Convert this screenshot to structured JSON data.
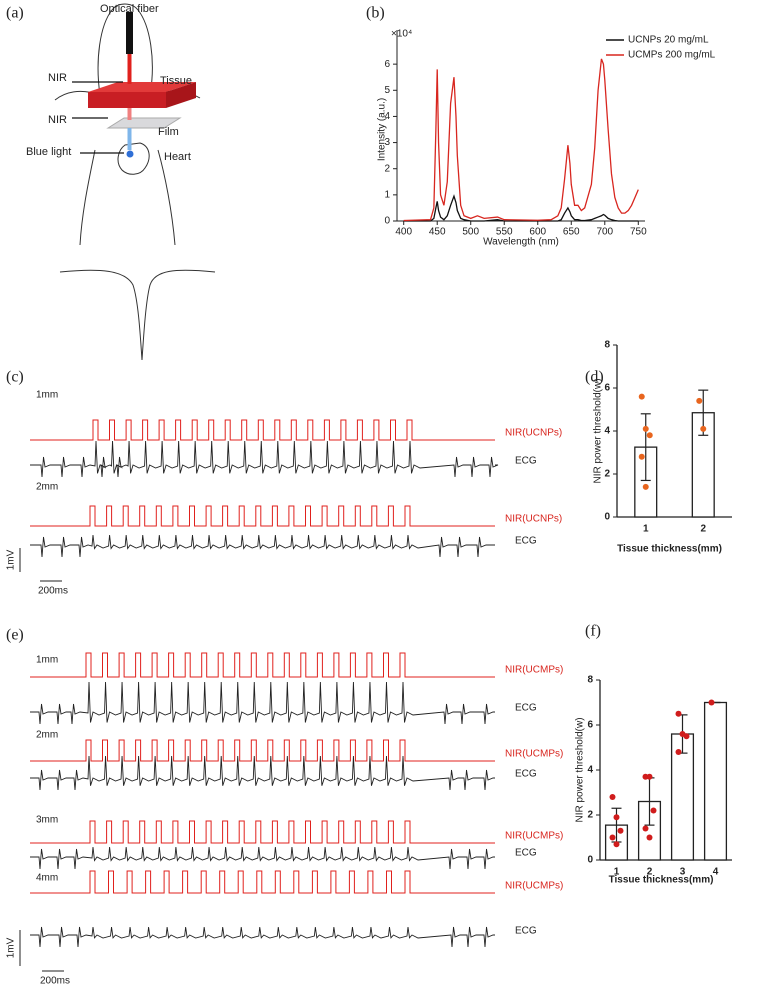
{
  "figure": {
    "panels": [
      "(a)",
      "(b)",
      "(c)",
      "(d)",
      "(e)",
      "(f)"
    ],
    "a": {
      "labels": [
        "Optical fiber",
        "NIR",
        "Tissue",
        "NIR",
        "Film",
        "Blue light",
        "Heart"
      ]
    },
    "c": {
      "rows": [
        {
          "thickness": "1mm",
          "stimulus": "NIR(UCNPs)",
          "recording": "ECG"
        },
        {
          "thickness": "2mm",
          "stimulus": "NIR(UCNPs)",
          "recording": "ECG"
        }
      ],
      "scale_voltage": "1mV",
      "scale_time": "200ms"
    },
    "e": {
      "rows": [
        {
          "thickness": "1mm",
          "stimulus": "NIR(UCMPs)",
          "recording": "ECG"
        },
        {
          "thickness": "2mm",
          "stimulus": "NIR(UCMPs)",
          "recording": "ECG"
        },
        {
          "thickness": "3mm",
          "stimulus": "NIR(UCMPs)",
          "recording": "ECG"
        },
        {
          "thickness": "4mm",
          "stimulus": "NIR(UCMPs)",
          "recording": "ECG"
        }
      ],
      "scale_voltage": "1mV",
      "scale_time": "200ms"
    }
  },
  "chart_data": [
    {
      "type": "line",
      "x_label": "Wavelength (nm)",
      "y_label": "Intensity (a.u.)",
      "y_scale_label": "×10⁴",
      "x": [
        400,
        440,
        445,
        448,
        450,
        452,
        455,
        460,
        465,
        470,
        475,
        478,
        480,
        485,
        490,
        500,
        510,
        520,
        540,
        550,
        600,
        620,
        630,
        635,
        640,
        645,
        648,
        650,
        655,
        660,
        665,
        670,
        680,
        685,
        690,
        695,
        698,
        700,
        705,
        710,
        715,
        720,
        725,
        730,
        735,
        740,
        745,
        750
      ],
      "series": [
        {
          "name": "UCNPs 20 mg/mL",
          "color": "#111111",
          "values": [
            0,
            0,
            0.1,
            0.5,
            0.75,
            0.4,
            0.15,
            0.05,
            0.2,
            0.6,
            0.95,
            0.7,
            0.4,
            0.1,
            0.05,
            0,
            0,
            0,
            0.05,
            0,
            0,
            0,
            0,
            0.05,
            0.3,
            0.5,
            0.35,
            0.2,
            0.05,
            0.05,
            0.02,
            0.02,
            0.05,
            0.1,
            0.15,
            0.2,
            0.25,
            0.22,
            0.1,
            0.05,
            0.02,
            0,
            0,
            0,
            0,
            0,
            0,
            0
          ]
        },
        {
          "name": "UCMPs 200 mg/mL",
          "color": "#d8261f",
          "values": [
            0.02,
            0.05,
            0.5,
            3.5,
            5.8,
            3.0,
            1.0,
            0.6,
            1.5,
            4.5,
            5.5,
            4.0,
            2.5,
            0.6,
            0.2,
            0.1,
            0.2,
            0.1,
            0.15,
            0.05,
            0.03,
            0.05,
            0.2,
            0.5,
            1.6,
            2.9,
            2.2,
            1.4,
            0.6,
            0.6,
            0.4,
            0.5,
            1.4,
            2.8,
            5.0,
            6.2,
            6.0,
            5.4,
            3.5,
            1.8,
            0.9,
            0.5,
            0.3,
            0.3,
            0.4,
            0.6,
            0.9,
            1.2
          ]
        }
      ],
      "xlim": [
        390,
        760
      ],
      "xticks": [
        400,
        450,
        500,
        550,
        600,
        650,
        700,
        750
      ],
      "ylim": [
        0,
        7
      ],
      "yticks": [
        0,
        1,
        2,
        3,
        4,
        5,
        6
      ],
      "legend": "upper right"
    },
    {
      "type": "bar",
      "x_label": "Tissue thickness(mm)",
      "y_label": "NIR power threshold(w)",
      "categories": [
        "1",
        "2"
      ],
      "values": [
        3.25,
        4.85
      ],
      "errors": [
        1.55,
        1.05
      ],
      "points": [
        [
          5.6,
          4.1,
          3.8,
          2.8,
          1.4
        ],
        [
          5.4,
          4.1
        ]
      ],
      "color": "#ffffff",
      "point_color": "#e8651e",
      "ylim": [
        0,
        8
      ],
      "yticks": [
        0,
        2,
        4,
        6,
        8
      ]
    },
    {
      "type": "bar",
      "x_label": "Tissue thickness(mm)",
      "y_label": "NIR power threshold(w)",
      "categories": [
        "1",
        "2",
        "3",
        "4"
      ],
      "values": [
        1.55,
        2.6,
        5.6,
        7.0
      ],
      "errors": [
        0.75,
        1.05,
        0.85,
        0
      ],
      "points": [
        [
          2.8,
          1.9,
          1.3,
          1.0,
          0.7
        ],
        [
          3.7,
          3.7,
          2.2,
          1.4,
          1.0
        ],
        [
          6.5,
          5.6,
          5.5,
          4.8
        ],
        [
          7.0
        ]
      ],
      "color": "#ffffff",
      "point_color": "#d01c1c",
      "ylim": [
        0,
        8
      ],
      "yticks": [
        0,
        2,
        4,
        6,
        8
      ]
    }
  ]
}
